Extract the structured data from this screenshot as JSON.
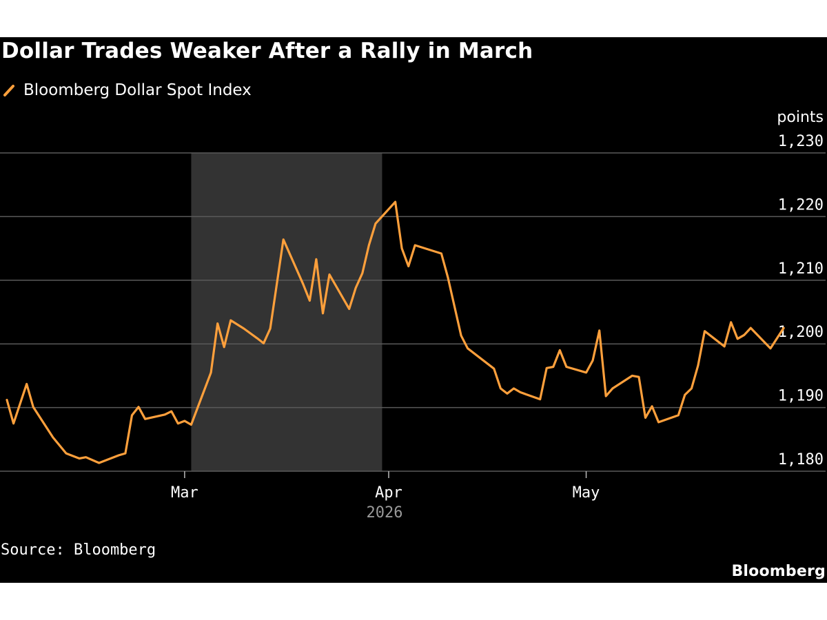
{
  "header": {
    "title": "Dollar Trades Weaker After a Rally in March"
  },
  "legend": {
    "label": "Bloomberg Dollar Spot Index",
    "color": "#ffa03c",
    "icon": "line-swatch-icon"
  },
  "footer": {
    "source": "Source: Bloomberg",
    "brand": "Bloomberg"
  },
  "colors": {
    "background": "#000000",
    "line": "#ffa03c",
    "grid": "#5a5a5a",
    "shade": "#333333",
    "text": "#ffffff"
  },
  "chart_data": {
    "type": "line",
    "title": "Dollar Trades Weaker After a Rally in March",
    "ylabel": "points",
    "xlabel": "",
    "ylim": [
      1180,
      1230
    ],
    "yticks": [
      1180,
      1190,
      1200,
      1210,
      1220,
      1230
    ],
    "ytick_labels": [
      "1,180",
      "1,190",
      "1,200",
      "1,210",
      "1,220",
      "1,230"
    ],
    "y_axis_position": "right",
    "grid": "horizontal",
    "xlim": [
      "2026-02-02",
      "2026-05-29"
    ],
    "xticks": [
      {
        "date": "2026-03-01",
        "label": "Mar"
      },
      {
        "date": "2026-04-01",
        "label": "Apr"
      },
      {
        "date": "2026-05-01",
        "label": "May"
      }
    ],
    "x_group_label": "2026",
    "shaded_region": {
      "start": "2026-03-02",
      "end": "2026-03-31"
    },
    "series": [
      {
        "name": "Bloomberg Dollar Spot Index",
        "points": [
          [
            "2026-02-02",
            1191.2
          ],
          [
            "2026-02-03",
            1187.5
          ],
          [
            "2026-02-05",
            1193.7
          ],
          [
            "2026-02-06",
            1190.1
          ],
          [
            "2026-02-09",
            1185.3
          ],
          [
            "2026-02-11",
            1182.8
          ],
          [
            "2026-02-13",
            1182.0
          ],
          [
            "2026-02-14",
            1182.2
          ],
          [
            "2026-02-16",
            1181.3
          ],
          [
            "2026-02-19",
            1182.5
          ],
          [
            "2026-02-20",
            1182.8
          ],
          [
            "2026-02-21",
            1188.8
          ],
          [
            "2026-02-22",
            1190.1
          ],
          [
            "2026-02-23",
            1188.2
          ],
          [
            "2026-02-26",
            1188.9
          ],
          [
            "2026-02-27",
            1189.4
          ],
          [
            "2026-02-28",
            1187.5
          ],
          [
            "2026-03-01",
            1187.9
          ],
          [
            "2026-03-02",
            1187.3
          ],
          [
            "2026-03-05",
            1195.5
          ],
          [
            "2026-03-06",
            1203.2
          ],
          [
            "2026-03-07",
            1199.5
          ],
          [
            "2026-03-08",
            1203.7
          ],
          [
            "2026-03-10",
            1202.4
          ],
          [
            "2026-03-12",
            1200.9
          ],
          [
            "2026-03-13",
            1200.1
          ],
          [
            "2026-03-14",
            1202.4
          ],
          [
            "2026-03-16",
            1216.4
          ],
          [
            "2026-03-19",
            1209.4
          ],
          [
            "2026-03-20",
            1206.8
          ],
          [
            "2026-03-21",
            1213.3
          ],
          [
            "2026-03-22",
            1204.8
          ],
          [
            "2026-03-23",
            1210.9
          ],
          [
            "2026-03-26",
            1205.5
          ],
          [
            "2026-03-27",
            1208.8
          ],
          [
            "2026-03-28",
            1211.1
          ],
          [
            "2026-03-29",
            1215.5
          ],
          [
            "2026-03-30",
            1218.9
          ],
          [
            "2026-04-02",
            1222.3
          ],
          [
            "2026-04-03",
            1215.0
          ],
          [
            "2026-04-04",
            1212.2
          ],
          [
            "2026-04-05",
            1215.5
          ],
          [
            "2026-04-09",
            1214.2
          ],
          [
            "2026-04-10",
            1210.4
          ],
          [
            "2026-04-12",
            1201.3
          ],
          [
            "2026-04-13",
            1199.3
          ],
          [
            "2026-04-17",
            1196.1
          ],
          [
            "2026-04-18",
            1193.0
          ],
          [
            "2026-04-19",
            1192.2
          ],
          [
            "2026-04-20",
            1193.0
          ],
          [
            "2026-04-21",
            1192.4
          ],
          [
            "2026-04-24",
            1191.3
          ],
          [
            "2026-04-25",
            1196.2
          ],
          [
            "2026-04-26",
            1196.4
          ],
          [
            "2026-04-27",
            1199.0
          ],
          [
            "2026-04-28",
            1196.4
          ],
          [
            "2026-05-01",
            1195.5
          ],
          [
            "2026-05-02",
            1197.4
          ],
          [
            "2026-05-03",
            1202.1
          ],
          [
            "2026-05-04",
            1191.8
          ],
          [
            "2026-05-05",
            1193.0
          ],
          [
            "2026-05-08",
            1195.0
          ],
          [
            "2026-05-09",
            1194.8
          ],
          [
            "2026-05-10",
            1188.4
          ],
          [
            "2026-05-11",
            1190.2
          ],
          [
            "2026-05-12",
            1187.7
          ],
          [
            "2026-05-15",
            1188.8
          ],
          [
            "2026-05-16",
            1192.0
          ],
          [
            "2026-05-17",
            1193.0
          ],
          [
            "2026-05-18",
            1196.6
          ],
          [
            "2026-05-19",
            1202.0
          ],
          [
            "2026-05-22",
            1199.6
          ],
          [
            "2026-05-23",
            1203.4
          ],
          [
            "2026-05-24",
            1200.8
          ],
          [
            "2026-05-25",
            1201.4
          ],
          [
            "2026-05-26",
            1202.5
          ],
          [
            "2026-05-29",
            1199.3
          ],
          [
            "2026-05-31",
            1202.5
          ]
        ]
      }
    ]
  }
}
